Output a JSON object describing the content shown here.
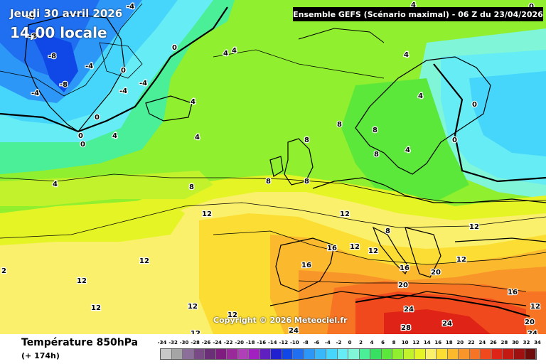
{
  "header": {
    "date_title": "Jeudi 30 avril 2026",
    "time_title": "14,00 locale",
    "run_info": "Ensemble GEFS  (Scénario maximal) - 06 Z du 23/04/2026"
  },
  "watermark": "Copyright © 2026 Meteociel.fr",
  "footer": {
    "variable": "Température 850hPa",
    "lead_time": "(+ 174h)"
  },
  "legend": {
    "labels": [
      "-34",
      "-32",
      "-30",
      "-28",
      "-26",
      "-24",
      "-22",
      "-20",
      "-18",
      "-16",
      "-14",
      "-12",
      "-10",
      "-8",
      "-6",
      "-4",
      "-2",
      "0",
      "2",
      "4",
      "6",
      "8",
      "10",
      "12",
      "14",
      "16",
      "18",
      "20",
      "22",
      "24",
      "26",
      "28",
      "30",
      "32",
      "34"
    ],
    "colors": [
      "#c8c8c8",
      "#a5a5a5",
      "#8c6e9a",
      "#7a4a86",
      "#6a2f77",
      "#7f1c7f",
      "#9a2a9a",
      "#b040b8",
      "#a020c0",
      "#6020c0",
      "#2020d0",
      "#1048e8",
      "#1f6ff0",
      "#2d97f7",
      "#38b8fb",
      "#46d6fb",
      "#66ecf5",
      "#80f5d8",
      "#4bef98",
      "#37e060",
      "#5ce83a",
      "#90ef2e",
      "#c1f22c",
      "#e5f425",
      "#fbf06b",
      "#fbdd33",
      "#fbb92d",
      "#f8962a",
      "#f67423",
      "#f0491d",
      "#e02317",
      "#c21913",
      "#9f1010",
      "#6e0c0c"
    ],
    "values": [
      -34,
      -32,
      -30,
      -28,
      -26,
      -24,
      -22,
      -20,
      -18,
      -16,
      -14,
      -12,
      -10,
      -8,
      -6,
      -4,
      -2,
      0,
      2,
      4,
      6,
      8,
      10,
      12,
      14,
      16,
      18,
      20,
      22,
      24,
      26,
      28,
      30,
      32,
      34
    ]
  },
  "isotherm_labels": [
    {
      "text": "-4"
    },
    {
      "text": "-4"
    },
    {
      "text": "-8"
    },
    {
      "text": "-8"
    },
    {
      "text": "-4"
    },
    {
      "text": "-4"
    },
    {
      "text": "-8"
    },
    {
      "text": "0"
    },
    {
      "text": "0"
    },
    {
      "text": "-4"
    },
    {
      "text": "-4"
    },
    {
      "text": "0"
    },
    {
      "text": "0"
    },
    {
      "text": "4"
    },
    {
      "text": "4"
    },
    {
      "text": "4"
    },
    {
      "text": "4"
    },
    {
      "text": "4"
    },
    {
      "text": "0"
    },
    {
      "text": "8"
    },
    {
      "text": "8"
    },
    {
      "text": "8"
    },
    {
      "text": "8"
    },
    {
      "text": "8"
    },
    {
      "text": "8"
    },
    {
      "text": "4"
    },
    {
      "text": "4"
    },
    {
      "text": "0"
    },
    {
      "text": "0"
    },
    {
      "text": "4"
    },
    {
      "text": "4"
    },
    {
      "text": "8"
    },
    {
      "text": "12"
    },
    {
      "text": "12"
    },
    {
      "text": "12"
    },
    {
      "text": "12"
    },
    {
      "text": "12"
    },
    {
      "text": "16"
    },
    {
      "text": "12"
    },
    {
      "text": "12"
    },
    {
      "text": "16"
    },
    {
      "text": "16"
    },
    {
      "text": "20"
    },
    {
      "text": "20"
    },
    {
      "text": "16"
    },
    {
      "text": "24"
    },
    {
      "text": "24"
    },
    {
      "text": "28"
    },
    {
      "text": "24"
    },
    {
      "text": "20"
    },
    {
      "text": "24"
    },
    {
      "text": "12"
    },
    {
      "text": "12"
    },
    {
      "text": "12"
    },
    {
      "text": "12"
    },
    {
      "text": "12"
    },
    {
      "text": "2"
    },
    {
      "text": "8"
    },
    {
      "text": "12"
    },
    {
      "text": "0"
    },
    {
      "text": "4"
    }
  ]
}
